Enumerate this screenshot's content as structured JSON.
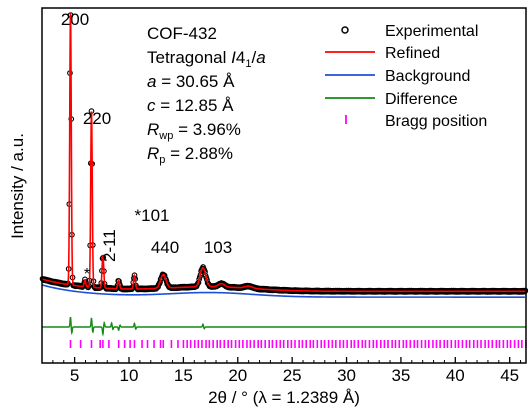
{
  "chart_data": {
    "type": "line",
    "sample": "COF-432",
    "xlabel": "2θ / ° (λ = 1.2389 Å)",
    "ylabel": "Intensity / a.u.",
    "xlim": [
      2,
      46.5
    ],
    "x_ticks": [
      "5",
      "10",
      "15",
      "20",
      "25",
      "30",
      "35",
      "40",
      "45"
    ],
    "y_tick_labels": "none",
    "grid": false,
    "legend_position": "top-right",
    "info": {
      "name": "COF-432",
      "system_word": "Tetragonal ",
      "space_group_sym": "I",
      "space_group_sub": "4",
      "space_group_suffix": "1",
      "space_group_slash": "/",
      "space_group_tail": "a",
      "a_label": "a",
      "a_value": " = 30.65 Å",
      "c_label": "c",
      "c_value": " = 12.85 Å",
      "rwp_label": "R",
      "rwp_sub": "wp",
      "rwp_value": " = 3.96%",
      "rp_label": "R",
      "rp_sub": "p",
      "rp_value": " = 2.88%"
    },
    "peak_labels": [
      {
        "text": "200",
        "x": 4.6
      },
      {
        "text": "220",
        "x": 6.55
      },
      {
        "text": "2-11",
        "x": 7.6
      },
      {
        "text": "*",
        "x": 5.9
      },
      {
        "text": "*101",
        "x": 10.5
      },
      {
        "text": "440",
        "x": 13.2
      },
      {
        "text": "103",
        "x": 16.8
      }
    ],
    "series": [
      {
        "name": "Experimental",
        "color": "#000000",
        "style": "open-circle"
      },
      {
        "name": "Refined",
        "color": "#ff0000",
        "style": "line"
      },
      {
        "name": "Background",
        "color": "#1f4fd6",
        "style": "line"
      },
      {
        "name": "Difference",
        "color": "#138a13",
        "style": "line"
      },
      {
        "name": "Bragg position",
        "color": "#ff00ff",
        "style": "tick"
      }
    ],
    "peaks": [
      {
        "x": 4.62,
        "h": 100,
        "w": 0.1
      },
      {
        "x": 6.55,
        "h": 65,
        "w": 0.1
      },
      {
        "x": 7.6,
        "h": 12,
        "w": 0.11
      },
      {
        "x": 5.95,
        "h": 2.5,
        "w": 0.1
      },
      {
        "x": 9.05,
        "h": 3,
        "w": 0.12
      },
      {
        "x": 10.5,
        "h": 5,
        "w": 0.12
      },
      {
        "x": 13.15,
        "h": 5,
        "w": 0.35
      },
      {
        "x": 16.8,
        "h": 7,
        "w": 0.35
      },
      {
        "x": 18.5,
        "h": 1.2,
        "w": 0.4
      },
      {
        "x": 21.0,
        "h": 0.8,
        "w": 0.5
      }
    ],
    "background": {
      "base": 3.2,
      "decay_amp": 4.5,
      "hump_x": 17.5,
      "hump_h": 1.6,
      "hump_w": 5.5,
      "offset": -3.5
    },
    "difference": [
      {
        "x": 4.62,
        "v": 2.5
      },
      {
        "x": 6.55,
        "v": 2.2
      },
      {
        "x": 7.6,
        "v": -1.8
      },
      {
        "x": 8.4,
        "v": 1
      },
      {
        "x": 9.05,
        "v": -0.8
      },
      {
        "x": 10.5,
        "v": 0.9
      },
      {
        "x": 16.8,
        "v": 0.7
      }
    ],
    "bragg_positions": {
      "start": 4.62,
      "dense_after": 15,
      "sparse": [
        4.62,
        5.55,
        6.55,
        7.35,
        7.6,
        8.15,
        9.05,
        9.6,
        10.1,
        10.5,
        11.2,
        11.7,
        12.3,
        12.9,
        13.15,
        13.9,
        14.5
      ]
    }
  }
}
